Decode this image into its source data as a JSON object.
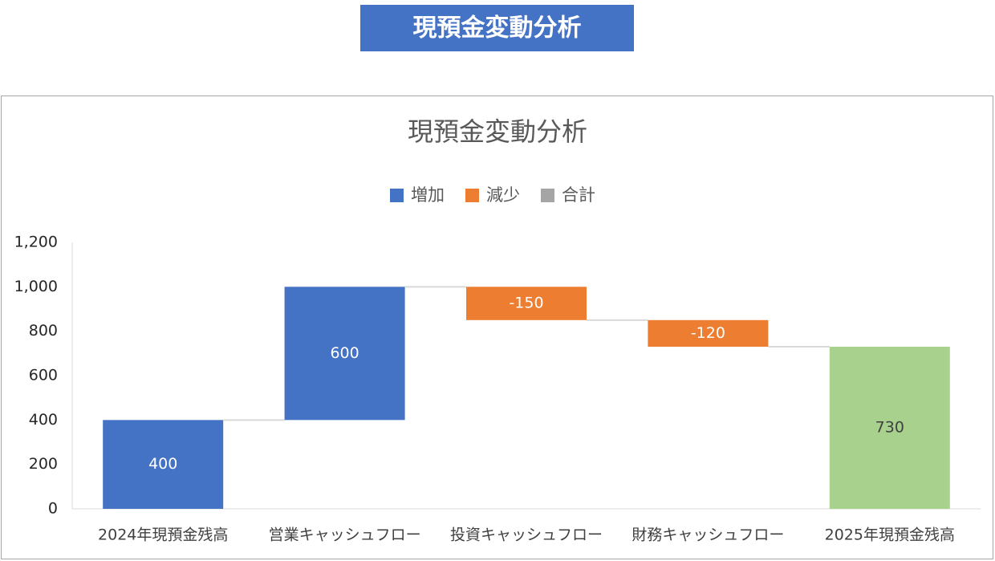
{
  "header": {
    "title": "現預金変動分析"
  },
  "chart_data": {
    "type": "waterfall",
    "title": "現預金変動分析",
    "categories": [
      "2024年現預金残高",
      "営業キャッシュフロー",
      "投資キャッシュフロー",
      "財務キャッシュフロー",
      "2025年現預金残高"
    ],
    "values": [
      400,
      600,
      -150,
      -120,
      730
    ],
    "totals": [
      false,
      false,
      false,
      false,
      true
    ],
    "colors": [
      "#4472c4",
      "#4472c4",
      "#ed7d31",
      "#ed7d31",
      "#a9d18e"
    ],
    "legend": [
      {
        "name": "増加",
        "color": "#4472c4"
      },
      {
        "name": "減少",
        "color": "#ed7d31"
      },
      {
        "name": "合計",
        "color": "#a5a5a5"
      }
    ],
    "ylim": [
      0,
      1200
    ],
    "yticks": [
      0,
      200,
      400,
      600,
      800,
      {
        "value": 1000,
        "label": "1,000"
      },
      {
        "value": 1200,
        "label": "1,200"
      }
    ],
    "grid": false
  }
}
